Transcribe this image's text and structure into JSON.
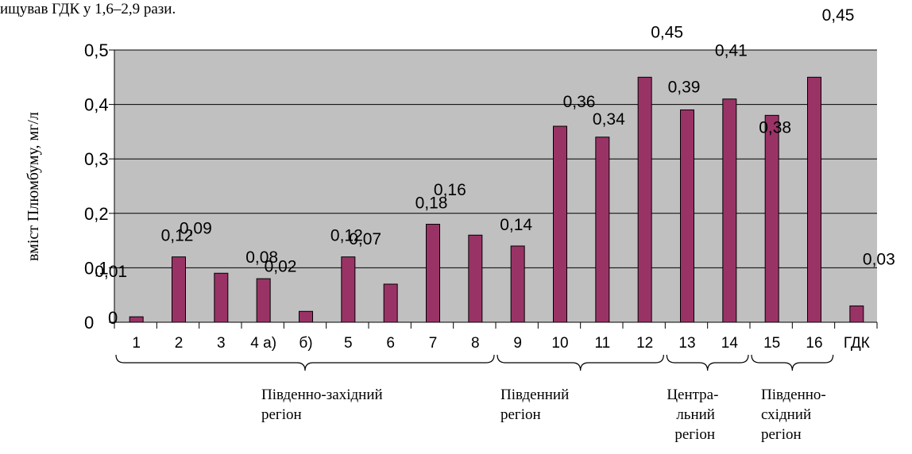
{
  "top_text": "ищував ГДК у 1,6–2,9 рази.",
  "chart_data": {
    "type": "bar",
    "ylabel": "вміст Плюмбуму, мг/л",
    "ylim": [
      0,
      0.5
    ],
    "yticks": [
      {
        "value": 0,
        "label": "0"
      },
      {
        "value": 0.1,
        "label": "0,1"
      },
      {
        "value": 0.2,
        "label": "0,2"
      },
      {
        "value": 0.3,
        "label": "0,3"
      },
      {
        "value": 0.4,
        "label": "0,4"
      },
      {
        "value": 0.5,
        "label": "0,5"
      }
    ],
    "grid": true,
    "plot_color": "#c0c0c0",
    "bar_color": "#993366",
    "categories": [
      "1",
      "2",
      "3",
      "4 а)",
      "б)",
      "5",
      "6",
      "7",
      "8",
      "9",
      "10",
      "11",
      "12",
      "13",
      "14",
      "15",
      "16",
      "ГДК"
    ],
    "values": [
      0.01,
      0.12,
      0.09,
      0.08,
      0.02,
      0.12,
      0.07,
      0.18,
      0.16,
      0.14,
      0.36,
      0.34,
      0.45,
      0.39,
      0.41,
      0.38,
      0.45,
      0.03
    ],
    "data_labels": [
      "0,01",
      "0,12",
      "0,09",
      "0,08",
      "0,02",
      "0,12",
      "0,07",
      "0,18",
      "0,16",
      "0,14",
      "0,36",
      "0,34",
      "0,45",
      "0,39",
      "0,41",
      "0,38",
      "0,45",
      "0,03"
    ],
    "regions": [
      {
        "name_lines": [
          "Південно-західний",
          "регіон"
        ],
        "from": 0,
        "to": 8
      },
      {
        "name_lines": [
          "Південний",
          "регіон"
        ],
        "from": 9,
        "to": 12
      },
      {
        "name_lines": [
          "Центра-",
          "льний",
          "регіон"
        ],
        "from": 13,
        "to": 14
      },
      {
        "name_lines": [
          "Південно-",
          "східний",
          "регіон"
        ],
        "from": 15,
        "to": 16
      }
    ]
  }
}
